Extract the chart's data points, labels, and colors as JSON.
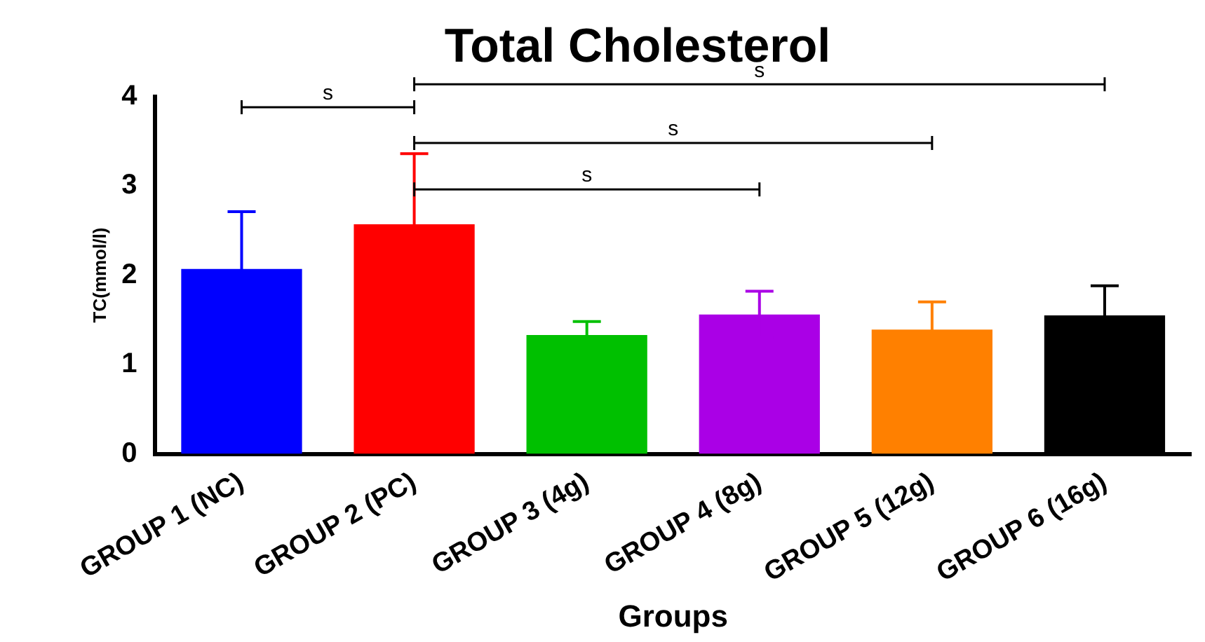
{
  "chart_data": {
    "type": "bar",
    "title": "Total Cholesterol",
    "xlabel": "Groups",
    "ylabel": "TC(mmol/l)",
    "categories": [
      "GROUP 1 (NC)",
      "GROUP 2 (PC)",
      "GROUP 3 (4g)",
      "GROUP 4 (8g)",
      "GROUP 5 (12g)",
      "GROUP 6 (16g)"
    ],
    "values": [
      2.07,
      2.57,
      1.33,
      1.56,
      1.39,
      1.55
    ],
    "errors": [
      0.64,
      0.79,
      0.15,
      0.26,
      0.31,
      0.33
    ],
    "colors": [
      "#0000ff",
      "#ff0000",
      "#00c000",
      "#aa00e6",
      "#ff8000",
      "#000000"
    ],
    "ylim": [
      0,
      4
    ],
    "yticks": [
      0,
      1,
      2,
      3,
      4
    ],
    "grid": false,
    "legend": false,
    "annotations": [
      "s",
      "s",
      "s",
      "s"
    ]
  }
}
